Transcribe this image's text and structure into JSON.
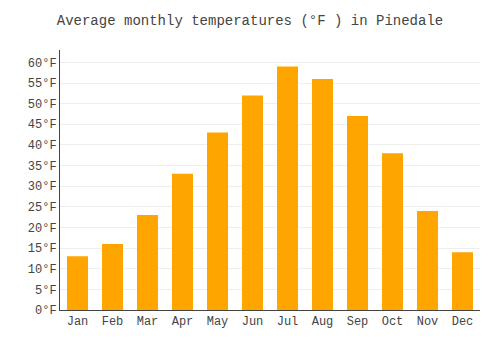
{
  "chart_data": {
    "type": "bar",
    "title": "Average monthly temperatures (°F ) in Pinedale",
    "categories": [
      "Jan",
      "Feb",
      "Mar",
      "Apr",
      "May",
      "Jun",
      "Jul",
      "Aug",
      "Sep",
      "Oct",
      "Nov",
      "Dec"
    ],
    "values": [
      13,
      16,
      23,
      33,
      43,
      52,
      59,
      56,
      47,
      38,
      24,
      14
    ],
    "color": "#FFA500",
    "ylim": [
      0,
      63
    ],
    "yticks": [
      {
        "value": 0,
        "label": "0°F"
      },
      {
        "value": 5,
        "label": "5°F"
      },
      {
        "value": 10,
        "label": "10°F"
      },
      {
        "value": 15,
        "label": "15°F"
      },
      {
        "value": 20,
        "label": "20°F"
      },
      {
        "value": 25,
        "label": "25°F"
      },
      {
        "value": 30,
        "label": "30°F"
      },
      {
        "value": 35,
        "label": "35°F"
      },
      {
        "value": 40,
        "label": "40°F"
      },
      {
        "value": 45,
        "label": "45°F"
      },
      {
        "value": 50,
        "label": "50°F"
      },
      {
        "value": 55,
        "label": "55°F"
      },
      {
        "value": 60,
        "label": "60°F"
      }
    ],
    "grid": true
  }
}
